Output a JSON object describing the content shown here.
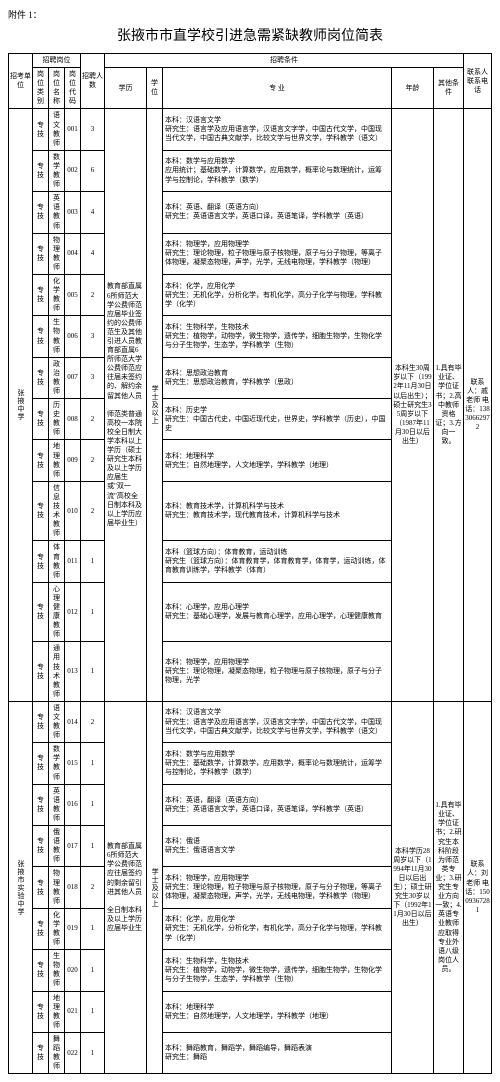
{
  "attachment_label": "附件 1：",
  "title": "张掖市市直学校引进急需紧缺教师岗位简表",
  "headers": {
    "unit": "招考单位",
    "post_group": "招聘岗位",
    "post_type": "岗位类别",
    "post_name": "岗位名称",
    "post_code": "岗位代码",
    "num": "招聘人数",
    "cond_group": "招聘条件",
    "edu": "学历",
    "degree": "学位",
    "major": "专  业",
    "age": "年龄",
    "other": "其他条件",
    "contact": "联系人联系电话"
  },
  "units": {
    "u1": "张掖中学",
    "u2": "张掖市实验中学"
  },
  "edu_text": "教育部直属6所师范大学公费师范应届毕业签约的公费师范生及其他引进人员教育部直属6所师范大学公费师范应往届未签约的、解约余留其他人员",
  "edu_note": "师范类普通高校一本院校全日制大学本科以上学历（硕士研究生本科及以上学历应届生或\"双一流\"高校全日制本科及以上学历应届毕业生）",
  "degree_text": "学士及以上",
  "edu_text2": "教育部直属6所师范大学公费师范应往届签约的剩余留引进其他人员",
  "edu_note2": "全日制本科及以上学历应届毕业生",
  "degree_text2": "学士及以上",
  "age_text1": "本科生30周岁以下（1992年11月30日以后出生）；硕士研究生35周岁以下（1987年11月30日以后出生）",
  "age_text2": "本科学历28周岁以下（1994年11月30日以后出生）；硕士研究生30岁以下（1992年11月30日以后出生）",
  "other_text": "1.具有毕业证、学位证书；2.高中教师资格证；3.方向一致。",
  "other_text2": "1.具有毕业证、学位证书；2.研究生本科阶段为师范类专业；3.研究生专业方向一致；4.英语专业教师应取得专业外语八级岗位人员。",
  "contact_text": "联系人：戚老师 电话：13830662972",
  "contact_text2": "联系人：刘老师 电话：15009367281",
  "rows1": [
    {
      "type": "专技",
      "name": "语文教师",
      "code": "001",
      "num": "3",
      "major": "本科：汉语言文学\n研究生：语言学及应用语言学，汉语言文字学，中国古代文学，中国现当代文学，中国古典文献学，比较文学与世界文学，学科教学（语文）"
    },
    {
      "type": "专技",
      "name": "数学教师",
      "code": "002",
      "num": "6",
      "major": "本科：数学与应用数学\n应用统计；基础数学，计算数学，应用数学，概率论与数理统计，运筹学与控制论，学科教学（数学）"
    },
    {
      "type": "专技",
      "name": "英语教师",
      "code": "003",
      "num": "4",
      "major": "本科：英语、翻译（英语方向）\n研究生：英语语言文学，英语口译，英语笔译，学科教学（英语）"
    },
    {
      "type": "专技",
      "name": "物理教师",
      "code": "004",
      "num": "4",
      "major": "本科：物理学，应用物理学\n研究生：理论物理，粒子物理与原子核物理，原子与分子物理，等离子体物理，凝聚态物理，声学，光学，无线电物理，学科教学（物理）"
    },
    {
      "type": "专技",
      "name": "化学教师",
      "code": "005",
      "num": "2",
      "major": "本科：化学，应用化学\n研究生：无机化学，分析化学，有机化学，高分子化学与物理，学科教学（化学）"
    },
    {
      "type": "专技",
      "name": "生物教师",
      "code": "006",
      "num": "3",
      "major": "本科：生物科学，生物技术\n研究生：植物学，动物学，微生物学，遗传学，细胞生物学，生物化学与分子生物学，生态学，学科教学（生物）"
    },
    {
      "type": "专技",
      "name": "政治教师",
      "code": "007",
      "num": "3",
      "major": "本科：思想政治教育\n研究生：思想政治教育，学科教学（思政）"
    },
    {
      "type": "专技",
      "name": "历史教师",
      "code": "008",
      "num": "2",
      "major": "本科：历史学\n研究生：中国古代史，中国近现代史，世界史，学科教学（历史），中国史"
    },
    {
      "type": "专技",
      "name": "地理教师",
      "code": "009",
      "num": "2",
      "major": "本科：地理科学\n研究生：自然地理学，人文地理学，学科教学（地理）"
    },
    {
      "type": "专技",
      "name": "信息技术教师",
      "code": "010",
      "num": "2",
      "major": "本科：教育技术学，计算机科学与技术\n研究生：教育技术学，现代教育技术，计算机科学与技术"
    },
    {
      "type": "专技",
      "name": "体育教师",
      "code": "011",
      "num": "1",
      "major": "本科（篮球方向）：体育教育，运动训练\n研究生（篮球方向）：体育教育学，体育教育学，体育学，运动训练，体育教育训练学，学科教学（体育）"
    },
    {
      "type": "专技",
      "name": "心理健康教师",
      "code": "012",
      "num": "1",
      "major": "本科：心理学，应用心理学\n研究生：基础心理学，发展与教育心理学，应用心理学，心理健康教育"
    },
    {
      "type": "专技",
      "name": "通用技术教师",
      "code": "013",
      "num": "1",
      "major": "本科：物理学，应用物理学\n研究生：理论物理，凝聚态物理，粒子物理与原子核物理，原子与分子物理，光学"
    }
  ],
  "rows2": [
    {
      "type": "专技",
      "name": "语文教师",
      "code": "014",
      "num": "2",
      "major": "本科：汉语言文学\n研究生：语言学及应用语言学，汉语言文字学，中国古代文学，中国现当代文学，中国古典文献学，比较文学与世界文学，学科教学（语文）"
    },
    {
      "type": "专技",
      "name": "数学教师",
      "code": "015",
      "num": "1",
      "major": "本科：数学与应用数学\n研究生：基础数学，计算数学，应用数学，概率论与数理统计，运筹学与控制论，学科教学（数学）"
    },
    {
      "type": "专技",
      "name": "英语教师",
      "code": "016",
      "num": "1",
      "major": "本科：英语，翻译（英语方向）\n研究生：英语语言文学，英语口译，英语笔译，学科教学（英语）"
    },
    {
      "type": "专技",
      "name": "俄语教师",
      "code": "017",
      "num": "1",
      "major": "本科：俄语\n研究生：俄语语言文学"
    },
    {
      "type": "专技",
      "name": "物理教师",
      "code": "018",
      "num": "2",
      "major": "本科：物理学，应用物理学\n研究生：理论物理，粒子物理与原子核物理，原子与分子物理，等离子体物理，凝聚态物理，声学，光学，无线电物理，学科教学（物理）"
    },
    {
      "type": "专技",
      "name": "化学教师",
      "code": "019",
      "num": "1",
      "major": "本科：化学，应用化学\n研究生：无机化学，分析化学，有机化学，高分子化学与物理，学科教学（化学）"
    },
    {
      "type": "专技",
      "name": "生物教师",
      "code": "020",
      "num": "1",
      "major": "本科：生物科学，生物技术\n研究生：植物学，动物学，微生物学，遗传学，细胞生物学，生物化学与分子生物学，生态学，学科教学（生物）"
    },
    {
      "type": "专技",
      "name": "地理教师",
      "code": "021",
      "num": "1",
      "major": "本科：地理科学\n研究生：自然地理学，人文地理学，学科教学（地理）"
    },
    {
      "type": "专技",
      "name": "舞蹈教师",
      "code": "022",
      "num": "1",
      "major": "本科：舞蹈教育，舞蹈学，舞蹈编导，舞蹈表演\n研究生：舞蹈"
    }
  ]
}
